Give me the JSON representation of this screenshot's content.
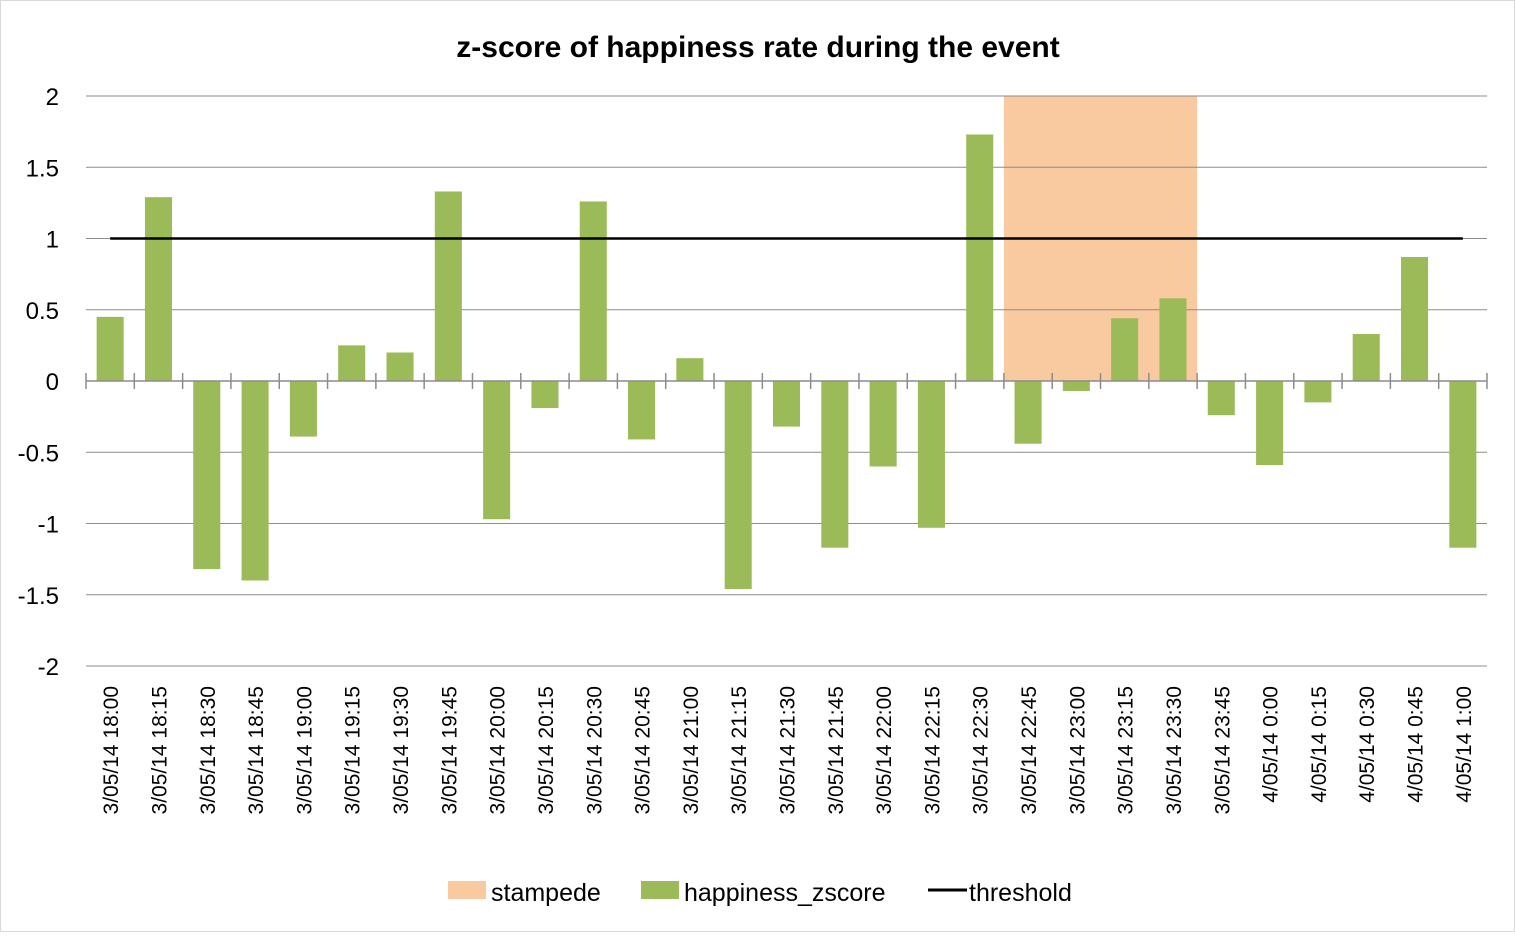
{
  "chart_data": {
    "type": "bar",
    "title": "z-score of happiness rate during the event",
    "xlabel": "",
    "ylabel": "",
    "ylim": [
      -2,
      2
    ],
    "yticks": [
      2,
      1.5,
      1,
      0.5,
      0,
      -0.5,
      -1,
      -1.5,
      -2
    ],
    "ytick_labels": [
      "2",
      "1.5",
      "1",
      "0.5",
      "0",
      "-0.5",
      "-1",
      "-1.5",
      "-2"
    ],
    "grid": true,
    "legend_position": "bottom",
    "categories": [
      "3/05/14 18:00",
      "3/05/14 18:15",
      "3/05/14 18:30",
      "3/05/14 18:45",
      "3/05/14 19:00",
      "3/05/14 19:15",
      "3/05/14 19:30",
      "3/05/14 19:45",
      "3/05/14 20:00",
      "3/05/14 20:15",
      "3/05/14 20:30",
      "3/05/14 20:45",
      "3/05/14 21:00",
      "3/05/14 21:15",
      "3/05/14 21:30",
      "3/05/14 21:45",
      "3/05/14 22:00",
      "3/05/14 22:15",
      "3/05/14 22:30",
      "3/05/14 22:45",
      "3/05/14 23:00",
      "3/05/14 23:15",
      "3/05/14 23:30",
      "3/05/14 23:45",
      "4/05/14 0:00",
      "4/05/14 0:15",
      "4/05/14 0:30",
      "4/05/14 0:45",
      "4/05/14 1:00"
    ],
    "series": [
      {
        "name": "stampede",
        "type": "area",
        "color": "#f9c9a0",
        "range": [
          "3/05/14 22:45",
          "3/05/14 23:30"
        ],
        "value": 2
      },
      {
        "name": "happiness_zscore",
        "type": "bar",
        "color": "#9bbb59",
        "values": [
          0.45,
          1.29,
          -1.32,
          -1.4,
          -0.39,
          0.25,
          0.2,
          1.33,
          -0.97,
          -0.19,
          1.26,
          -0.41,
          0.16,
          -1.46,
          -0.32,
          -1.17,
          -0.6,
          -1.03,
          1.73,
          -0.44,
          -0.07,
          0.44,
          0.58,
          -0.24,
          -0.59,
          -0.15,
          0.33,
          0.87,
          -1.17
        ]
      },
      {
        "name": "threshold",
        "type": "line",
        "color": "#000000",
        "value": 1
      }
    ]
  }
}
